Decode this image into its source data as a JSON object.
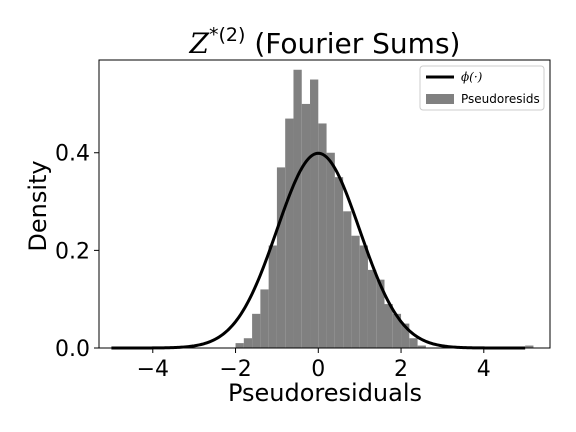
{
  "chart_data": {
    "type": "bar",
    "title": {
      "math": "Z",
      "superscript": "*(2)",
      "rest": " (Fourier Sums)"
    },
    "xlabel": "Pseudoresiduals",
    "ylabel": "Density",
    "xlim": [
      -5.3,
      5.6
    ],
    "ylim": [
      0,
      0.59
    ],
    "xticks": [
      -4,
      -2,
      0,
      2,
      4
    ],
    "xtick_labels": [
      "−4",
      "−2",
      "0",
      "2",
      "4"
    ],
    "yticks": [
      0.0,
      0.2,
      0.4
    ],
    "ytick_labels": [
      "0.0",
      "0.2",
      "0.4"
    ],
    "grid": false,
    "legend_position": "top-right",
    "legend": [
      {
        "label": "ϕ(·)",
        "kind": "line",
        "color": "#000000"
      },
      {
        "label": "Pseudoresids",
        "kind": "patch",
        "color": "#808080"
      }
    ],
    "histogram": {
      "name": "Pseudoresids",
      "color": "#808080",
      "bin_width": 0.2,
      "bins": [
        {
          "x0": -2.0,
          "height": 0.01
        },
        {
          "x0": -1.8,
          "height": 0.02
        },
        {
          "x0": -1.6,
          "height": 0.07
        },
        {
          "x0": -1.4,
          "height": 0.12
        },
        {
          "x0": -1.2,
          "height": 0.21
        },
        {
          "x0": -1.0,
          "height": 0.37
        },
        {
          "x0": -0.8,
          "height": 0.47
        },
        {
          "x0": -0.6,
          "height": 0.57
        },
        {
          "x0": -0.4,
          "height": 0.5
        },
        {
          "x0": -0.2,
          "height": 0.55
        },
        {
          "x0": 0.0,
          "height": 0.46
        },
        {
          "x0": 0.2,
          "height": 0.4
        },
        {
          "x0": 0.4,
          "height": 0.35
        },
        {
          "x0": 0.6,
          "height": 0.28
        },
        {
          "x0": 0.8,
          "height": 0.23
        },
        {
          "x0": 1.0,
          "height": 0.21
        },
        {
          "x0": 1.2,
          "height": 0.16
        },
        {
          "x0": 1.4,
          "height": 0.14
        },
        {
          "x0": 1.6,
          "height": 0.09
        },
        {
          "x0": 1.8,
          "height": 0.07
        },
        {
          "x0": 2.0,
          "height": 0.05
        },
        {
          "x0": 2.2,
          "height": 0.02
        },
        {
          "x0": 2.4,
          "height": 0.005
        },
        {
          "x0": 5.0,
          "height": 0.005
        }
      ]
    },
    "curve": {
      "name": "ϕ(·)",
      "function": "standard normal density",
      "x_range": [
        -5,
        5
      ],
      "color": "#000000"
    }
  }
}
